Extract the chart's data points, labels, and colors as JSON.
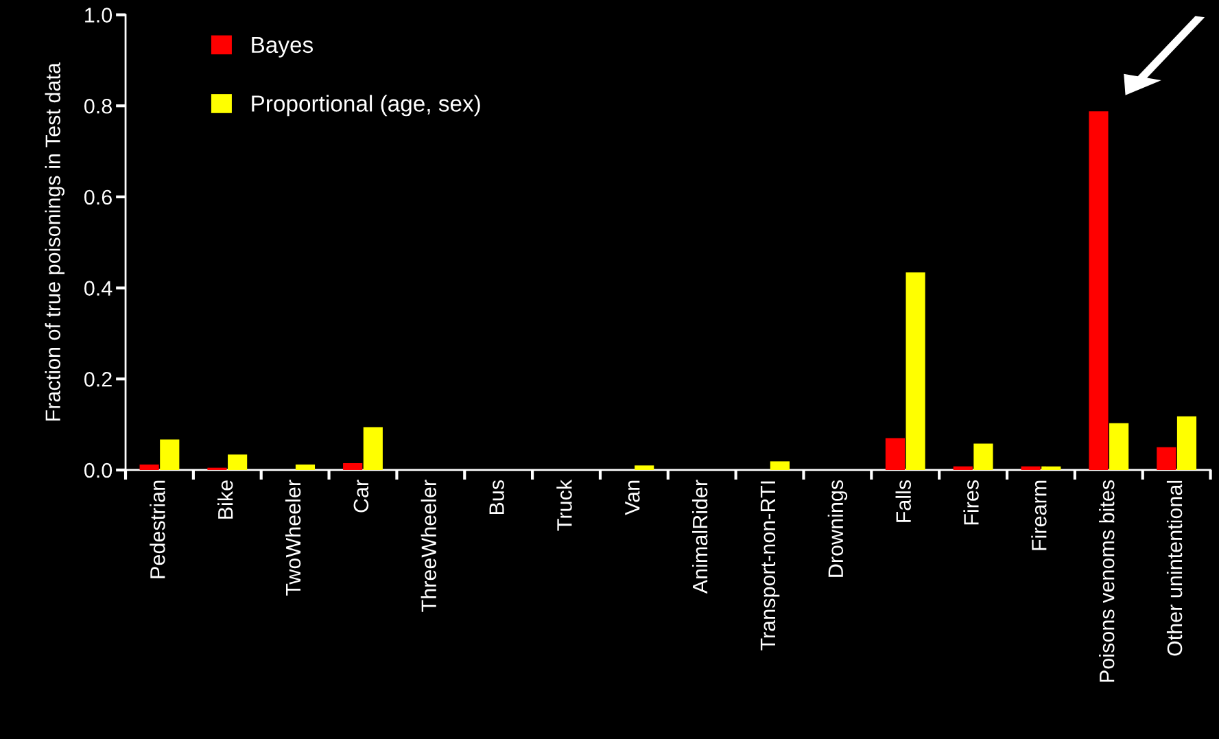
{
  "chart_data": {
    "type": "bar",
    "ylabel": "Fraction of true poisonings in Test data",
    "categories": [
      "Pedestrian",
      "Bike",
      "TwoWheeler",
      "Car",
      "ThreeWheeler",
      "Bus",
      "Truck",
      "Van",
      "AnimalRider",
      "Transport-non-RTI",
      "Drownings",
      "Falls",
      "Fires",
      "Firearm",
      "Poisons venoms bites",
      "Other unintentional"
    ],
    "series": [
      {
        "name": "Bayes",
        "color": "#ff0000",
        "values": [
          0.012,
          0.005,
          0,
          0.015,
          0,
          0,
          0,
          0,
          0,
          0,
          0,
          0.07,
          0.008,
          0.008,
          0.788,
          0.05
        ]
      },
      {
        "name": "Proportional (age, sex)",
        "color": "#ffff00",
        "values": [
          0.067,
          0.034,
          0.012,
          0.094,
          0,
          0,
          0,
          0.01,
          0,
          0.019,
          0,
          0.434,
          0.058,
          0.008,
          0.103,
          0.118
        ]
      }
    ],
    "ylim": [
      0,
      1.0
    ],
    "yticks": [
      {
        "value": 0,
        "label": "0.0"
      },
      0.2,
      0.4,
      0.6,
      0.8,
      {
        "value": 1.0,
        "label": "1.0"
      }
    ],
    "grid": false,
    "legend": "top left"
  }
}
